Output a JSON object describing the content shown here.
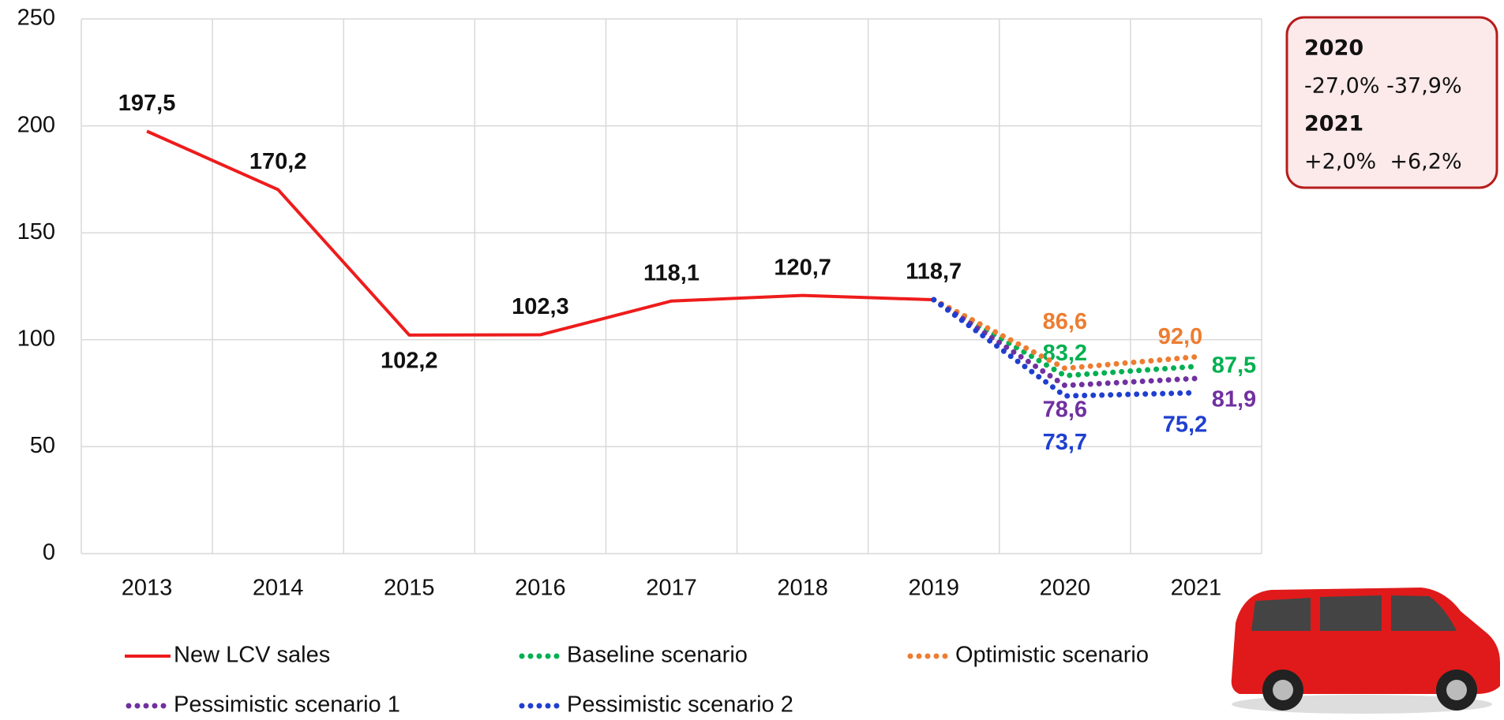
{
  "chart_data": {
    "type": "line",
    "categories": [
      "2013",
      "2014",
      "2015",
      "2016",
      "2017",
      "2018",
      "2019",
      "2020",
      "2021"
    ],
    "series": [
      {
        "name": "New LCV sales",
        "color": "#ee1c1c",
        "style": "solid",
        "values": [
          197.5,
          170.2,
          102.2,
          102.3,
          118.1,
          120.7,
          118.7,
          null,
          null
        ],
        "value_labels": [
          "197,5",
          "170,2",
          "102,2",
          "102,3",
          "118,1",
          "120,7",
          "118,7",
          null,
          null
        ]
      },
      {
        "name": "Baseline scenario",
        "color": "#00b050",
        "style": "dotted",
        "values": [
          null,
          null,
          null,
          null,
          null,
          null,
          118.7,
          83.2,
          87.5
        ],
        "value_labels": [
          null,
          null,
          null,
          null,
          null,
          null,
          null,
          "83,2",
          "87,5"
        ]
      },
      {
        "name": "Optimistic scenario",
        "color": "#ed7d31",
        "style": "dotted",
        "values": [
          null,
          null,
          null,
          null,
          null,
          null,
          118.7,
          86.6,
          92.0
        ],
        "value_labels": [
          null,
          null,
          null,
          null,
          null,
          null,
          null,
          "86,6",
          "92,0"
        ]
      },
      {
        "name": "Pessimistic scenario 1",
        "color": "#7030a0",
        "style": "dotted",
        "values": [
          null,
          null,
          null,
          null,
          null,
          null,
          118.7,
          78.6,
          81.9
        ],
        "value_labels": [
          null,
          null,
          null,
          null,
          null,
          null,
          null,
          "78,6",
          "81,9"
        ]
      },
      {
        "name": "Pessimistic scenario 2",
        "color": "#1f3fcf",
        "style": "dotted",
        "values": [
          null,
          null,
          null,
          null,
          null,
          null,
          118.7,
          73.7,
          75.2
        ],
        "value_labels": [
          null,
          null,
          null,
          null,
          null,
          null,
          null,
          "73,7",
          "75,2"
        ]
      }
    ],
    "ylim": [
      0,
      250
    ],
    "yticks": [
      0,
      50,
      100,
      150,
      200,
      250
    ],
    "grid": true,
    "annotation": [
      "2020",
      "-27,0% -37,9%",
      "2021",
      "+2,0%  +6,2%"
    ]
  }
}
